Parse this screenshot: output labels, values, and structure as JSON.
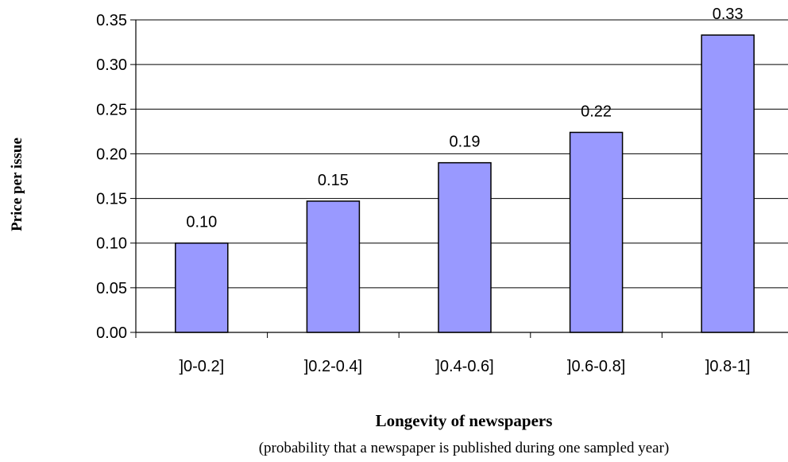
{
  "chart_data": {
    "type": "bar",
    "categories": [
      "]0-0.2]",
      "]0.2-0.4]",
      "]0.4-0.6]",
      "]0.6-0.8]",
      "]0.8-1]"
    ],
    "values": [
      0.1,
      0.147,
      0.19,
      0.224,
      0.333
    ],
    "data_labels": [
      "0.10",
      "0.15",
      "0.19",
      "0.22",
      "0.33"
    ],
    "ylim": [
      0,
      0.35
    ],
    "yticks": [
      "0.00",
      "0.05",
      "0.10",
      "0.15",
      "0.20",
      "0.25",
      "0.30",
      "0.35"
    ],
    "ylabel": "Price per issue",
    "xlabel": "Longevity of newspapers",
    "xsublabel": "(probability that a newspaper is published during one sampled year)",
    "grid": true,
    "bar_color": "#9999ff",
    "grid_color": "#000000"
  }
}
